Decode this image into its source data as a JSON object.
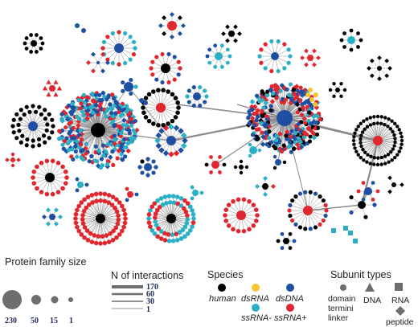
{
  "colors": {
    "human": "#000000",
    "dsRNA": "#f4c531",
    "dsDNA": "#1f4fa3",
    "ssRNA_minus": "#2ab0c5",
    "ssRNA_plus": "#e0262e",
    "edge": "#8a8a8a",
    "legend_grey": "#6e6e6e"
  },
  "legend": {
    "family_size": {
      "title": "Protein family size",
      "values": [
        "230",
        "50",
        "15",
        "1"
      ]
    },
    "interactions": {
      "title": "N of  interactions",
      "values": [
        "170",
        "60",
        "30",
        "1"
      ]
    },
    "species": {
      "title": "Species",
      "items": [
        {
          "label": "human",
          "color_key": "human"
        },
        {
          "label": "dsRNA",
          "color_key": "dsRNA"
        },
        {
          "label": "dsDNA",
          "color_key": "dsDNA"
        },
        {
          "label": "ssRNA-",
          "color_key": "ssRNA_minus"
        },
        {
          "label": "ssRNA+",
          "color_key": "ssRNA_plus"
        }
      ]
    },
    "subunits": {
      "title": "Subunit types",
      "labels": {
        "domain": "domain",
        "termini": "termini",
        "linker": "linker",
        "dna": "DNA",
        "rna": "RNA",
        "peptide": "peptide"
      },
      "icons": {
        "domain": "circle",
        "dna": "triangle",
        "rna": "square",
        "peptide": "diamond"
      }
    }
  }
}
